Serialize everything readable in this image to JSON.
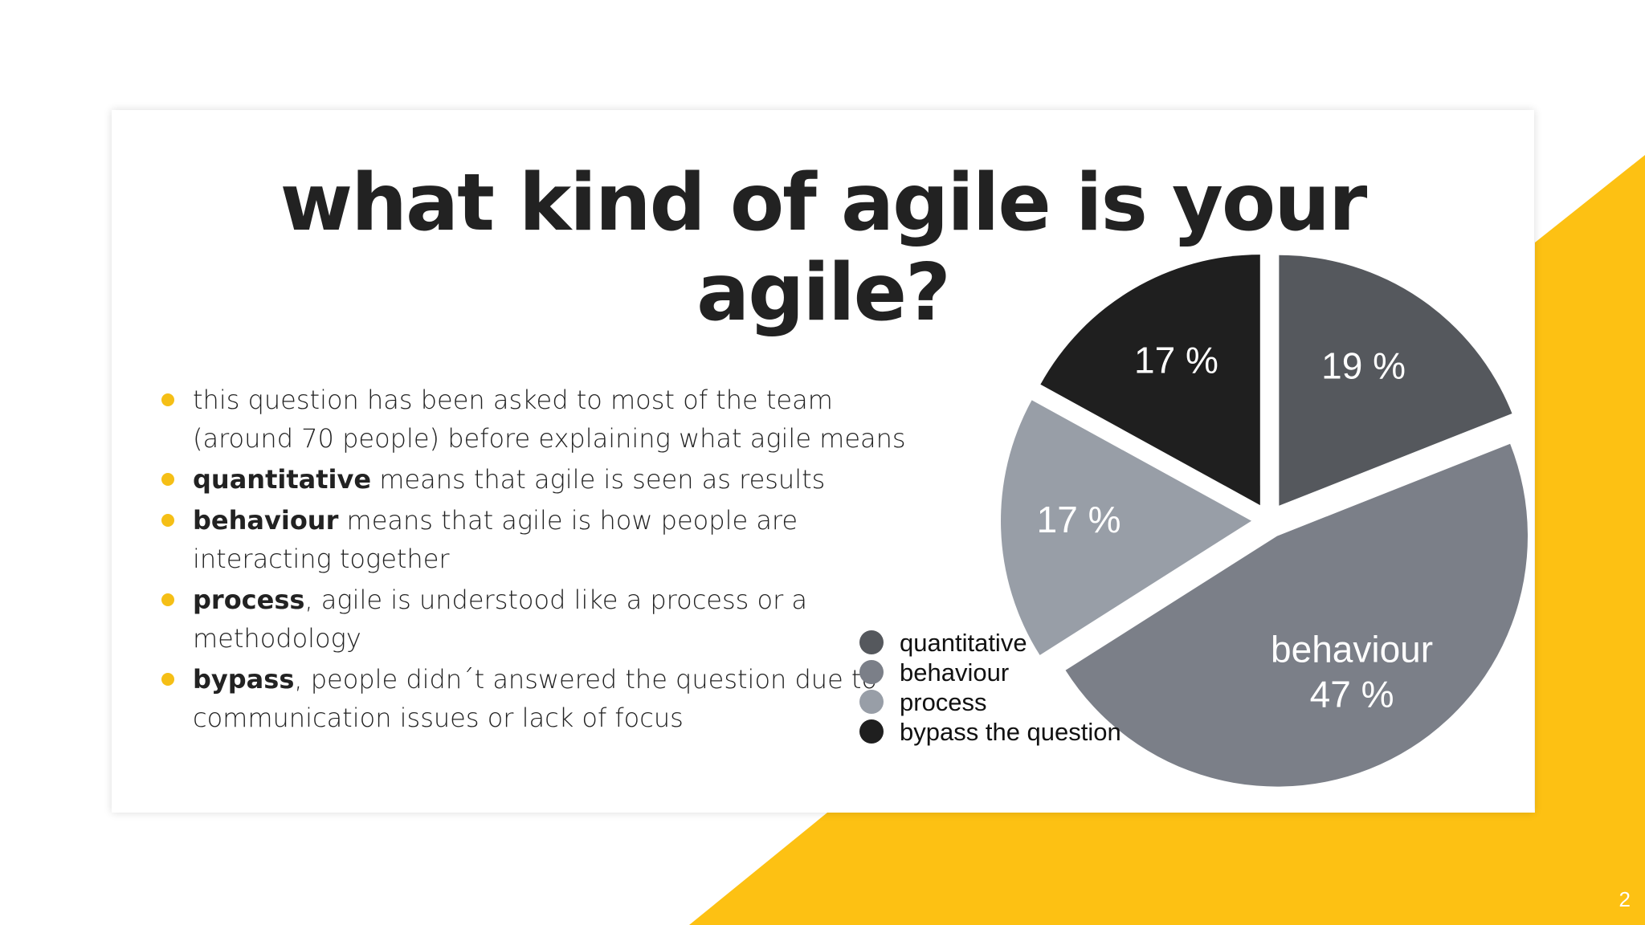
{
  "slide": {
    "title_lines": [
      "what kind of agile is your",
      "agile?"
    ],
    "page_number": "2",
    "colors": {
      "accent": "#f5bf16",
      "text": "#222222"
    }
  },
  "bullets": [
    {
      "bold": "",
      "rest": "this question has been asked to most of the team (around 70 people) before explaining what agile means"
    },
    {
      "bold": "quantitative",
      "rest": " means that agile is seen as results"
    },
    {
      "bold": "behaviour",
      "rest": " means that agile is how people are interacting together"
    },
    {
      "bold": "process",
      "rest": ", agile is understood like a process or a methodology"
    },
    {
      "bold": "bypass",
      "rest": ", people didn´t answered the question due to communication issues or lack of focus"
    }
  ],
  "chart_data": {
    "type": "pie",
    "title": "",
    "slices": [
      {
        "label": "quantitative",
        "value": 19,
        "display": "19 %",
        "color": "#55585d"
      },
      {
        "label": "behaviour",
        "value": 47,
        "display": "behaviour\n47 %",
        "color": "#7b7f88"
      },
      {
        "label": "process",
        "value": 17,
        "display": "17 %",
        "color": "#989ea7"
      },
      {
        "label": "bypass the question",
        "value": 17,
        "display": "17 %",
        "color": "#1f1f1f"
      }
    ],
    "exploded": true,
    "legend": {
      "placement": "bottom-left",
      "entries": [
        "quantitative",
        "behaviour",
        "process",
        "bypass the question"
      ]
    }
  }
}
